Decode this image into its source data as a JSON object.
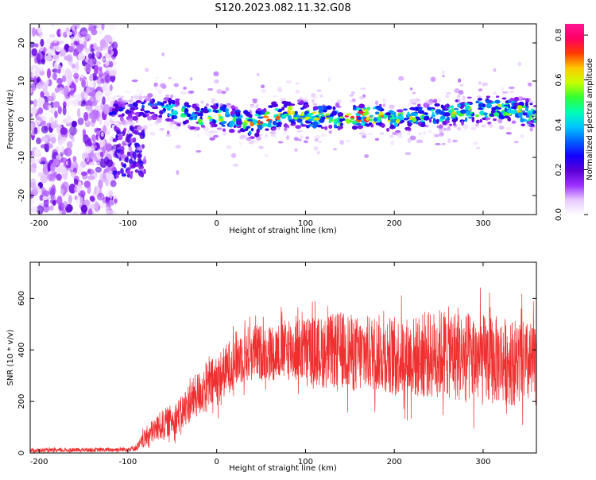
{
  "title": "S120.2023.082.11.32.G08",
  "colors": {
    "snr_line": "#f03030",
    "axis": "#000000",
    "background": "#ffffff",
    "colormap": [
      "#ffffff",
      "#e6c8ff",
      "#9b30ff",
      "#5a00d6",
      "#1400ff",
      "#0064ff",
      "#00c8ff",
      "#00ffb4",
      "#32ff32",
      "#c8ff00",
      "#ffc800",
      "#ff3c00",
      "#ff0064",
      "#ff1493"
    ]
  },
  "chart_data": [
    {
      "type": "heatmap",
      "xlabel": "Height of straight line (km)",
      "ylabel": "Frequency (Hz)",
      "xlim": [
        -210,
        360
      ],
      "ylim": [
        -25,
        25
      ],
      "x_ticks": [
        -200,
        -100,
        0,
        100,
        200,
        300
      ],
      "x_tick_labels": [
        "-200",
        "-100",
        "0",
        "100",
        "200",
        "300"
      ],
      "y_ticks": [
        -20,
        -10,
        0,
        10,
        20
      ],
      "y_tick_labels": [
        "-20",
        "-10",
        "0",
        "10",
        "20"
      ],
      "colorbar": {
        "label": "Normalized spectral amplitude",
        "range": [
          0.0,
          0.85
        ],
        "ticks": [
          0.0,
          0.2,
          0.4,
          0.6,
          0.8
        ],
        "tick_labels": [
          "0.0",
          "0.2",
          "0.4",
          "0.6",
          "0.8"
        ]
      },
      "signal_track": {
        "x": [
          -120,
          -100,
          -80,
          -60,
          -40,
          -20,
          0,
          20,
          40,
          60,
          80,
          100,
          120,
          140,
          160,
          180,
          200,
          220,
          240,
          260,
          280,
          300,
          320,
          340,
          360
        ],
        "center_freq": [
          2,
          2.5,
          3,
          3,
          1.5,
          0.5,
          1,
          0,
          -1.5,
          0.5,
          1.5,
          1,
          0.5,
          0,
          1,
          0.5,
          0,
          0.5,
          1,
          1.5,
          2,
          2.5,
          3,
          2,
          1
        ],
        "peak_amplitude": [
          0.25,
          0.3,
          0.35,
          0.4,
          0.55,
          0.6,
          0.6,
          0.55,
          0.65,
          0.8,
          0.7,
          0.7,
          0.65,
          0.7,
          0.8,
          0.75,
          0.6,
          0.6,
          0.55,
          0.6,
          0.6,
          0.65,
          0.65,
          0.7,
          0.6
        ]
      },
      "noise_region": {
        "x_range": [
          -210,
          -120
        ],
        "amplitude": 0.15
      }
    },
    {
      "type": "line",
      "xlabel": "Height of straight line (km)",
      "ylabel": "SNR (10 * v/v)",
      "xlim": [
        -210,
        360
      ],
      "ylim": [
        0,
        740
      ],
      "x_ticks": [
        -200,
        -100,
        0,
        100,
        200,
        300
      ],
      "x_tick_labels": [
        "-200",
        "-100",
        "0",
        "100",
        "200",
        "300"
      ],
      "y_ticks": [
        0,
        200,
        400,
        600
      ],
      "y_tick_labels": [
        "0",
        "200",
        "400",
        "600"
      ],
      "series": [
        {
          "x": [
            -210,
            -180,
            -150,
            -120,
            -100,
            -90,
            -80,
            -70,
            -60,
            -50,
            -40,
            -30,
            -20,
            -10,
            0,
            10,
            20,
            30,
            40,
            60,
            80,
            100,
            120,
            140,
            160,
            180,
            200,
            220,
            240,
            260,
            280,
            300,
            320,
            340,
            360
          ],
          "mean": [
            10,
            10,
            12,
            12,
            15,
            20,
            60,
            90,
            110,
            130,
            150,
            200,
            230,
            260,
            280,
            320,
            360,
            380,
            390,
            390,
            400,
            400,
            390,
            400,
            380,
            390,
            380,
            370,
            380,
            390,
            370,
            360,
            360,
            350,
            340
          ],
          "spread": [
            8,
            8,
            8,
            8,
            10,
            12,
            40,
            50,
            60,
            60,
            70,
            80,
            90,
            100,
            100,
            100,
            110,
            110,
            110,
            110,
            120,
            130,
            140,
            150,
            150,
            150,
            150,
            160,
            170,
            180,
            180,
            180,
            170,
            170,
            160
          ]
        }
      ]
    }
  ]
}
